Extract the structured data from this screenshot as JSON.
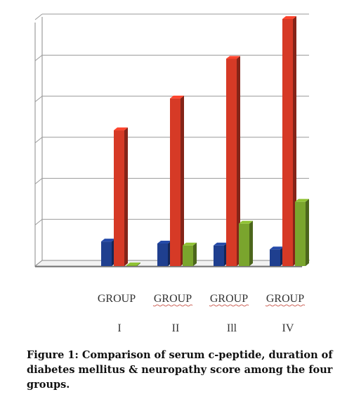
{
  "chart_data": {
    "type": "bar",
    "categories": [
      "GROUP",
      "GROUP",
      "GROUP",
      "GROUP"
    ],
    "group_numerals": [
      "I",
      "II",
      "Ill",
      "IV"
    ],
    "series": [
      {
        "values": [
          0.6,
          0.55,
          0.5,
          0.4
        ],
        "color": "#1f3f8f"
      },
      {
        "values": [
          3.4,
          4.2,
          5.2,
          6.2
        ],
        "color": "#d63a26"
      },
      {
        "values": [
          0.0,
          0.5,
          1.05,
          1.6
        ],
        "color": "#7aa52d"
      }
    ],
    "ylim": [
      0,
      6.2
    ],
    "y_gridlines": 6,
    "grid": true,
    "style": "3d-bar",
    "axis_ticks_labeled": false
  },
  "caption": "Figure 1: Comparison of serum c-peptide, duration of diabetes mellitus & neuropathy score among the four groups."
}
